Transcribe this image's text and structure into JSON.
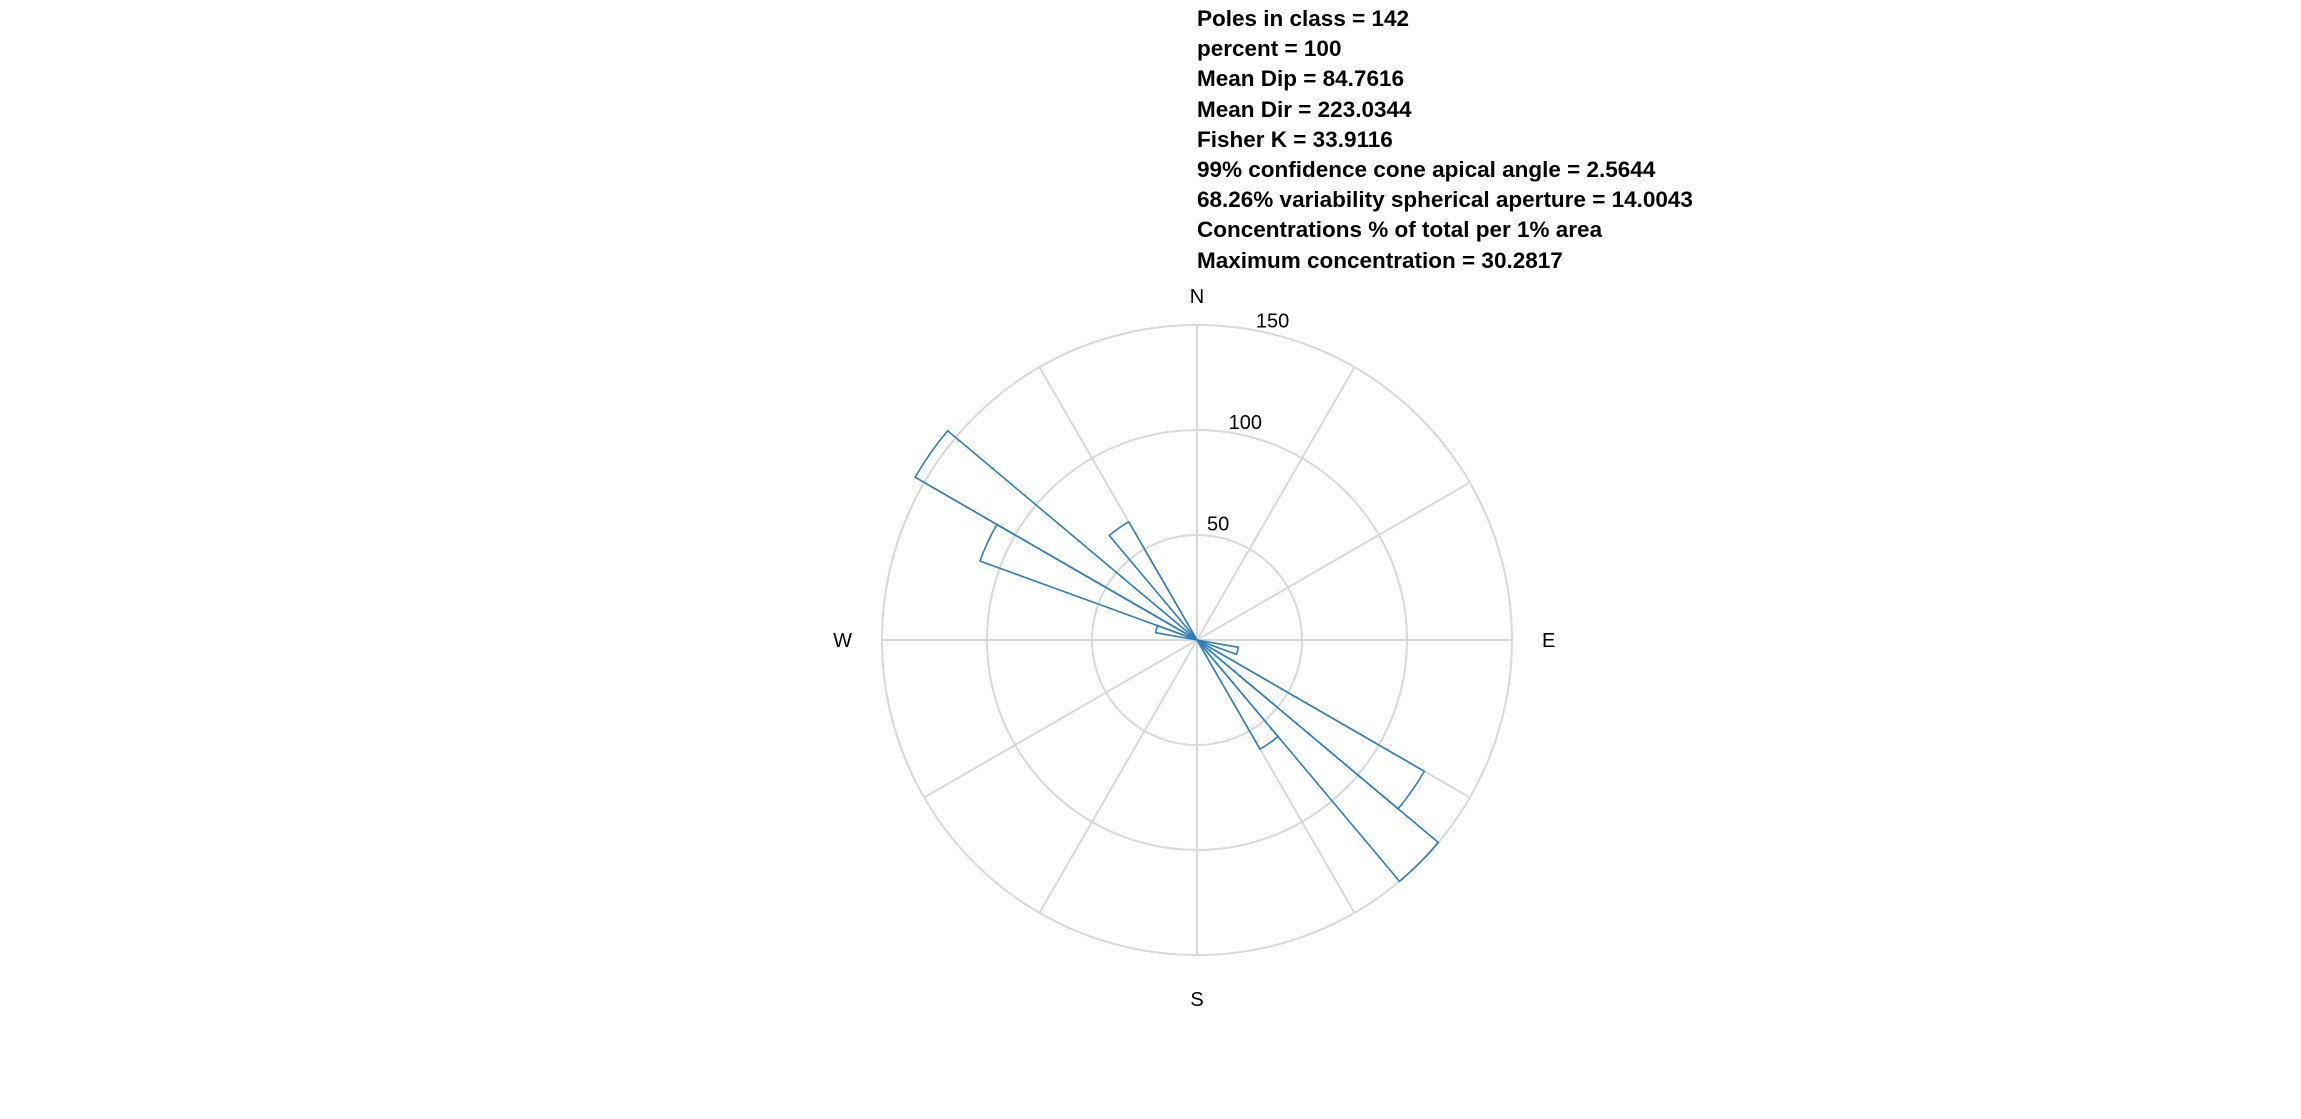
{
  "stats": [
    "Poles in class = 142",
    "percent = 100",
    "Mean Dip = 84.7616",
    "Mean Dir = 223.0344",
    "Fisher K = 33.9116",
    "99% confidence cone apical angle = 2.5644",
    "68.26% variability spherical aperture = 14.0043",
    "Concentrations % of total per 1% area",
    "Maximum concentration = 30.2817"
  ],
  "chart_data": {
    "type": "rose",
    "compass_labels": {
      "north": "N",
      "east": "E",
      "south": "S",
      "west": "W"
    },
    "radial_ticks": [
      50,
      100,
      150
    ],
    "rlim": [
      0,
      150
    ],
    "angular_grid_step_deg": 30,
    "bin_width_deg": 10,
    "bins": [
      {
        "start_deg": 100,
        "end_deg": 110,
        "value": 20
      },
      {
        "start_deg": 120,
        "end_deg": 130,
        "value": 125
      },
      {
        "start_deg": 130,
        "end_deg": 140,
        "value": 150
      },
      {
        "start_deg": 140,
        "end_deg": 150,
        "value": 60
      },
      {
        "start_deg": 280,
        "end_deg": 290,
        "value": 20
      },
      {
        "start_deg": 290,
        "end_deg": 300,
        "value": 110
      },
      {
        "start_deg": 300,
        "end_deg": 310,
        "value": 155
      },
      {
        "start_deg": 320,
        "end_deg": 330,
        "value": 65
      }
    ],
    "colors": {
      "bars": "#2e7ebd",
      "grid": "#d9d9d9"
    }
  }
}
